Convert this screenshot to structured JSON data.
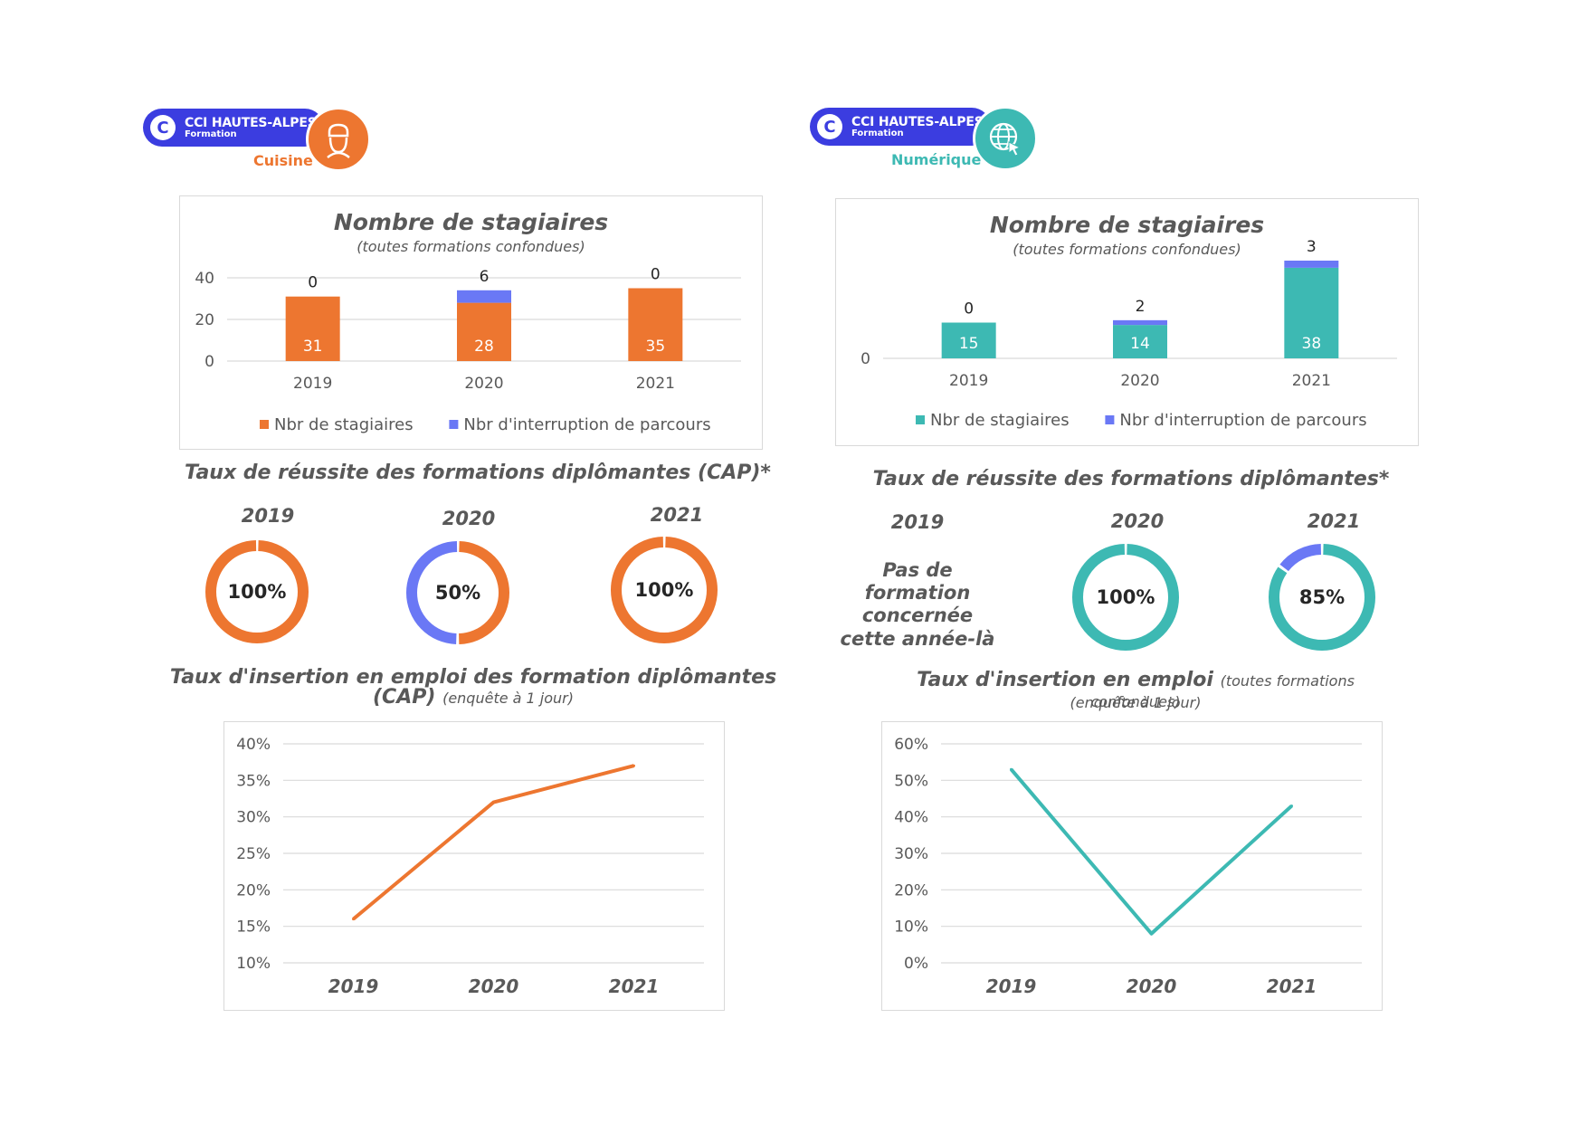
{
  "colors": {
    "brand_blue": "#3B3DE0",
    "orange": "#ED7630",
    "interruption": "#6A78F5",
    "teal": "#3DB9B3",
    "text": "#404040",
    "grid": "#d9d9d9"
  },
  "left": {
    "logo": {
      "line1": "CCI HAUTES-ALPES",
      "line2": "Formation",
      "category": "Cuisine",
      "icon": "chef-icon"
    },
    "stagiaires": {
      "title": "Nombre de stagiaires",
      "subtitle": "(toutes formations confondues)"
    },
    "reussite": {
      "title": "Taux de réussite des formations diplômantes (CAP)*",
      "years": [
        "2019",
        "2020",
        "2021"
      ],
      "labels": [
        "100%",
        "50%",
        "100%"
      ]
    },
    "insertion": {
      "title": "Taux d'insertion en emploi des formation diplômantes (CAP)",
      "note": "(enquête à 1 jour)"
    }
  },
  "right": {
    "logo": {
      "line1": "CCI HAUTES-ALPES",
      "line2": "Formation",
      "category": "Numérique",
      "icon": "globe-cursor-icon"
    },
    "stagiaires": {
      "title": "Nombre de stagiaires",
      "subtitle": "(toutes formations confondues)"
    },
    "reussite": {
      "title": "Taux de réussite des formations diplômantes*",
      "years": [
        "2019",
        "2020",
        "2021"
      ],
      "no_formation": "Pas de formation concernée cette année-là",
      "labels": [
        "100%",
        "85%"
      ]
    },
    "insertion": {
      "title": "Taux d'insertion en emploi",
      "note": "(toutes formations confondues)",
      "note2": "(enquête à 1 jour)"
    }
  },
  "chart_data": [
    {
      "id": "cuisine-stagiaires",
      "type": "bar",
      "stacked": true,
      "categories": [
        "2019",
        "2020",
        "2021"
      ],
      "series": [
        {
          "name": "Nbr de stagiaires",
          "values": [
            31,
            28,
            35
          ],
          "color": "#ED7630"
        },
        {
          "name": "Nbr d'interruption de parcours",
          "values": [
            0,
            6,
            0
          ],
          "color": "#6A78F5"
        }
      ],
      "yticks": [
        "0",
        "20",
        "40"
      ],
      "ylim": [
        0,
        40
      ],
      "grid": true,
      "legend": "bottom"
    },
    {
      "id": "cuisine-reussite",
      "type": "pie",
      "donut": true,
      "charts": [
        {
          "year": "2019",
          "slices": [
            {
              "value": 100,
              "color": "#ED7630"
            }
          ],
          "label": "100%"
        },
        {
          "year": "2020",
          "slices": [
            {
              "value": 50,
              "color": "#ED7630"
            },
            {
              "value": 50,
              "color": "#6A78F5"
            }
          ],
          "label": "50%"
        },
        {
          "year": "2021",
          "slices": [
            {
              "value": 100,
              "color": "#ED7630"
            }
          ],
          "label": "100%"
        }
      ]
    },
    {
      "id": "cuisine-insertion",
      "type": "line",
      "categories": [
        "2019",
        "2020",
        "2021"
      ],
      "values": [
        16,
        32,
        37
      ],
      "yticks": [
        "10%",
        "15%",
        "20%",
        "25%",
        "30%",
        "35%",
        "40%"
      ],
      "ylim": [
        10,
        40
      ],
      "grid": true,
      "color": "#ED7630"
    },
    {
      "id": "numerique-stagiaires",
      "type": "bar",
      "stacked": true,
      "categories": [
        "2019",
        "2020",
        "2021"
      ],
      "series": [
        {
          "name": "Nbr de stagiaires",
          "values": [
            15,
            14,
            38
          ],
          "color": "#3DB9B3"
        },
        {
          "name": "Nbr d'interruption de parcours",
          "values": [
            0,
            2,
            3
          ],
          "color": "#6A78F5"
        }
      ],
      "yticks": [
        "0"
      ],
      "ylim": [
        0,
        41
      ],
      "grid": true,
      "legend": "bottom"
    },
    {
      "id": "numerique-reussite",
      "type": "pie",
      "donut": true,
      "charts": [
        {
          "year": "2020",
          "slices": [
            {
              "value": 100,
              "color": "#3DB9B3"
            }
          ],
          "label": "100%"
        },
        {
          "year": "2021",
          "slices": [
            {
              "value": 85,
              "color": "#3DB9B3"
            },
            {
              "value": 15,
              "color": "#6A78F5"
            }
          ],
          "label": "85%"
        }
      ]
    },
    {
      "id": "numerique-insertion",
      "type": "line",
      "categories": [
        "2019",
        "2020",
        "2021"
      ],
      "values": [
        53,
        8,
        43
      ],
      "yticks": [
        "0%",
        "10%",
        "20%",
        "30%",
        "40%",
        "50%",
        "60%"
      ],
      "ylim": [
        0,
        60
      ],
      "grid": true,
      "color": "#3DB9B3"
    }
  ]
}
